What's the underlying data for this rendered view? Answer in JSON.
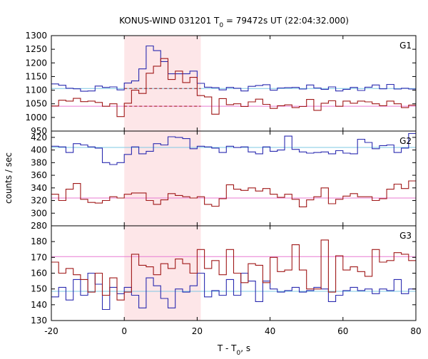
{
  "chart_data": {
    "type": "line",
    "title": "KONUS-WIND 031201 T₀ = 79472s UT (22:04:32.000)",
    "title_parts": {
      "pre": "KONUS-WIND 031201 T",
      "sub": "0",
      "post": " = 79472s UT (22:04:32.000)"
    },
    "ylabel": "counts / sec",
    "xlabel_parts": {
      "pre": "T - T",
      "sub": "0",
      "post": ", s"
    },
    "xlim": [
      -20,
      80
    ],
    "x_ticks": [
      -20,
      0,
      20,
      40,
      60,
      80
    ],
    "shaded_interval": [
      0,
      21
    ],
    "colors": {
      "series_a": "#2b2bb0",
      "series_b": "#a01818",
      "bg_a": "#7ec8e3",
      "bg_b": "#e87ad2",
      "shade": "#fde6e8"
    },
    "panels": [
      {
        "label": "G1",
        "ylim": [
          950,
          1300
        ],
        "y_ticks": [
          950,
          1000,
          1050,
          1100,
          1150,
          1200,
          1250,
          1300
        ],
        "background_levels": [
          1106,
          1041
        ],
        "bin_edges": [
          -20,
          -18,
          -16,
          -14,
          -12,
          -10,
          -8,
          -6,
          -4,
          -2,
          0,
          2,
          4,
          6,
          8,
          10,
          12,
          14,
          16,
          18,
          20,
          22,
          24,
          26,
          28,
          30,
          32,
          34,
          36,
          38,
          40,
          42,
          44,
          46,
          48,
          50,
          52,
          54,
          56,
          58,
          60,
          62,
          64,
          66,
          68,
          70,
          72,
          74,
          76,
          78,
          80
        ],
        "series": [
          {
            "values": [
              1123,
              1118,
              1107,
              1105,
              1096,
              1097,
              1115,
              1110,
              1112,
              1101,
              1126,
              1134,
              1178,
              1262,
              1245,
              1205,
              1160,
              1160,
              1160,
              1170,
              1125,
              1111,
              1109,
              1101,
              1110,
              1107,
              1097,
              1114,
              1117,
              1120,
              1100,
              1108,
              1109,
              1110,
              1104,
              1119,
              1108,
              1103,
              1112,
              1097,
              1103,
              1110,
              1099,
              1111,
              1119,
              1105,
              1121,
              1104,
              1107,
              1104
            ]
          },
          {
            "values": [
              1042,
              1063,
              1060,
              1070,
              1058,
              1060,
              1055,
              1041,
              1050,
              1003,
              1052,
              1100,
              1088,
              1162,
              1188,
              1216,
              1139,
              1170,
              1128,
              1147,
              1080,
              1075,
              1012,
              1069,
              1047,
              1050,
              1040,
              1057,
              1067,
              1048,
              1033,
              1043,
              1046,
              1036,
              1040,
              1066,
              1026,
              1052,
              1061,
              1041,
              1060,
              1052,
              1060,
              1057,
              1050,
              1043,
              1060,
              1050,
              1036,
              1045
            ]
          }
        ]
      },
      {
        "label": "G2",
        "ylim": [
          280,
          430
        ],
        "y_ticks": [
          280,
          300,
          320,
          340,
          360,
          380,
          400,
          420
        ],
        "background_levels": [
          404,
          324
        ],
        "bin_edges": [
          -20,
          -18,
          -16,
          -14,
          -12,
          -10,
          -8,
          -6,
          -4,
          -2,
          0,
          2,
          4,
          6,
          8,
          10,
          12,
          14,
          16,
          18,
          20,
          22,
          24,
          26,
          28,
          30,
          32,
          34,
          36,
          38,
          40,
          42,
          44,
          46,
          48,
          50,
          52,
          54,
          56,
          58,
          60,
          62,
          64,
          66,
          68,
          70,
          72,
          74,
          76,
          78,
          80
        ],
        "series": [
          {
            "values": [
              406,
              405,
              396,
              410,
              408,
              405,
              403,
              380,
              377,
              380,
              393,
              405,
              394,
              398,
              410,
              408,
              421,
              420,
              418,
              402,
              406,
              405,
              403,
              396,
              406,
              404,
              405,
              397,
              394,
              405,
              398,
              400,
              422,
              401,
              397,
              395,
              396,
              397,
              394,
              399,
              395,
              394,
              417,
              412,
              402,
              407,
              408,
              396,
              403,
              426
            ]
          },
          {
            "values": [
              330,
              320,
              338,
              347,
              322,
              317,
              316,
              320,
              326,
              324,
              330,
              332,
              332,
              320,
              314,
              321,
              331,
              328,
              326,
              324,
              326,
              314,
              311,
              323,
              345,
              338,
              336,
              340,
              335,
              339,
              330,
              325,
              330,
              322,
              310,
              321,
              326,
              340,
              315,
              322,
              327,
              331,
              326,
              326,
              320,
              323,
              338,
              346,
              339,
              351
            ]
          }
        ]
      },
      {
        "label": "G3",
        "ylim": [
          130,
          190
        ],
        "y_ticks": [
          130,
          140,
          150,
          160,
          170,
          180
        ],
        "background_levels": [
          148.5,
          170.5
        ],
        "bin_edges": [
          -20,
          -18,
          -16,
          -14,
          -12,
          -10,
          -8,
          -6,
          -4,
          -2,
          0,
          2,
          4,
          6,
          8,
          10,
          12,
          14,
          16,
          18,
          20,
          22,
          24,
          26,
          28,
          30,
          32,
          34,
          36,
          38,
          40,
          42,
          44,
          46,
          48,
          50,
          52,
          54,
          56,
          58,
          60,
          62,
          64,
          66,
          68,
          70,
          72,
          74,
          76,
          78,
          80
        ],
        "series": [
          {
            "values": [
              145,
              151,
              143,
              156,
              146,
              160,
              153,
              137,
              151,
              147,
              151,
              146,
              138,
              157,
              152,
              144,
              138,
              150,
              148,
              152,
              160,
              145,
              149,
              146,
              156,
              146,
              160,
              155,
              142,
              155,
              150,
              148,
              149,
              151,
              148,
              149,
              151,
              150,
              142,
              146,
              149,
              151,
              149,
              150,
              147,
              150,
              149,
              156,
              147,
              150
            ]
          },
          {
            "values": [
              167,
              160,
              163,
              159,
              156,
              148,
              160,
              146,
              157,
              143,
              148,
              172,
              165,
              164,
              159,
              166,
              163,
              169,
              166,
              160,
              175,
              163,
              168,
              159,
              175,
              160,
              154,
              166,
              165,
              154,
              170,
              161,
              162,
              178,
              162,
              150,
              150,
              181,
              148,
              171,
              162,
              164,
              161,
              158,
              175,
              167,
              168,
              173,
              172,
              168
            ]
          }
        ]
      }
    ]
  }
}
